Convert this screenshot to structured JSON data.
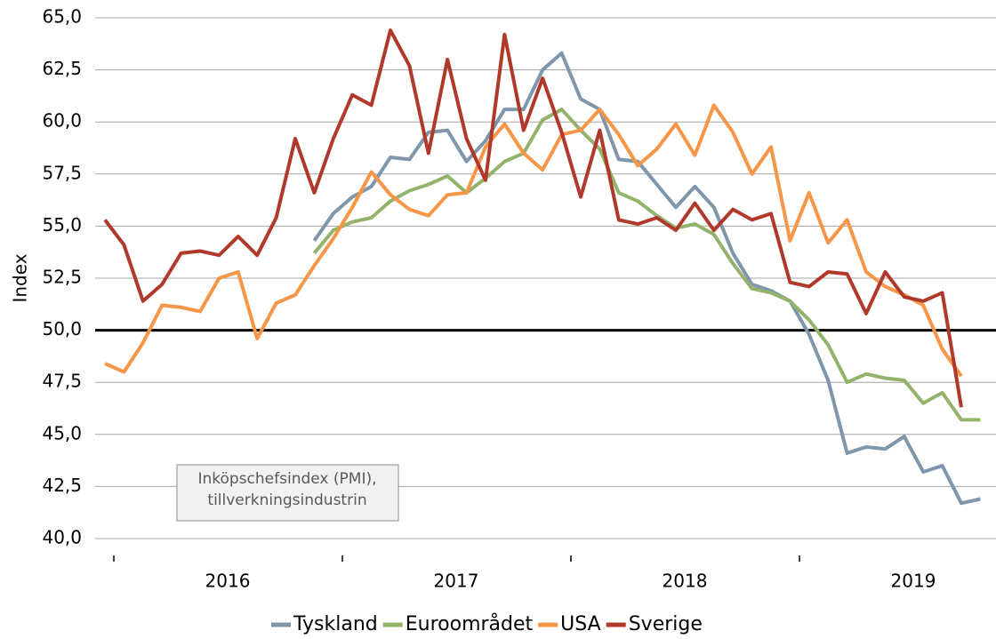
{
  "chart_data": {
    "type": "line",
    "y_label": "Index",
    "annotation": [
      "Inköpschefsindex (PMI),",
      "tillverkningsindustrin"
    ],
    "year_labels": [
      "2016",
      "2017",
      "2018",
      "2019"
    ],
    "categories": [
      null,
      null,
      null,
      null,
      null,
      null,
      null,
      null,
      null,
      null,
      null,
      null,
      null,
      null,
      null,
      null,
      null,
      null,
      null,
      null,
      null,
      null,
      null,
      null,
      null,
      null,
      null,
      null,
      null,
      null,
      null,
      null,
      null,
      null,
      null,
      null,
      null,
      null,
      null,
      null,
      null,
      null,
      null,
      null,
      null,
      null,
      null
    ],
    "ylim": [
      40,
      65
    ],
    "yticks": [
      {
        "value": 40,
        "label": "40,0"
      },
      {
        "value": 42.5,
        "label": "42,5"
      },
      {
        "value": 45,
        "label": "45,0"
      },
      {
        "value": 47.5,
        "label": "47,5"
      },
      {
        "value": 50,
        "label": "50,0"
      },
      {
        "value": 52.5,
        "label": "52,5"
      },
      {
        "value": 55,
        "label": "55,0"
      },
      {
        "value": 57.5,
        "label": "57,5"
      },
      {
        "value": 60,
        "label": "60,0"
      },
      {
        "value": 62.5,
        "label": "62,5"
      },
      {
        "value": 65,
        "label": "65,0"
      }
    ],
    "reference_line": 50,
    "grid": true,
    "series": [
      {
        "name": "Tyskland",
        "color": "#7f96ab",
        "values": [
          null,
          null,
          null,
          null,
          null,
          null,
          null,
          null,
          null,
          null,
          null,
          54.3,
          55.6,
          56.4,
          56.9,
          58.3,
          58.2,
          59.5,
          59.6,
          58.1,
          59.1,
          60.6,
          60.6,
          62.5,
          63.3,
          61.1,
          60.6,
          58.2,
          58.1,
          57.0,
          55.9,
          56.9,
          55.9,
          53.7,
          52.2,
          51.9,
          51.4,
          49.8,
          47.6,
          44.1,
          44.4,
          44.3,
          44.9,
          43.2,
          43.5,
          41.7,
          41.9
        ]
      },
      {
        "name": "Euroområdet",
        "color": "#93b36b",
        "values": [
          null,
          null,
          null,
          null,
          null,
          null,
          null,
          null,
          null,
          null,
          null,
          53.7,
          54.8,
          55.2,
          55.4,
          56.2,
          56.7,
          57.0,
          57.4,
          56.6,
          57.3,
          58.1,
          58.5,
          60.1,
          60.6,
          59.6,
          58.7,
          56.6,
          56.2,
          55.5,
          54.9,
          55.1,
          54.6,
          53.2,
          52.0,
          51.8,
          51.4,
          50.5,
          49.3,
          47.5,
          47.9,
          47.7,
          47.6,
          46.5,
          47.0,
          45.7,
          45.7
        ]
      },
      {
        "name": "USA",
        "color": "#f79646",
        "values": [
          48.4,
          48.0,
          49.4,
          51.2,
          51.1,
          50.9,
          52.5,
          52.8,
          49.6,
          51.3,
          51.7,
          53.1,
          54.4,
          55.9,
          57.6,
          56.5,
          55.8,
          55.5,
          56.5,
          56.6,
          58.8,
          59.9,
          58.5,
          57.7,
          59.4,
          59.6,
          60.6,
          59.4,
          57.9,
          58.7,
          59.9,
          58.4,
          60.8,
          59.5,
          57.5,
          58.8,
          54.3,
          56.6,
          54.2,
          55.3,
          52.8,
          52.1,
          51.7,
          51.2,
          49.1,
          47.8,
          null
        ]
      },
      {
        "name": "Sverige",
        "color": "#b0392b",
        "values": [
          55.3,
          54.1,
          51.4,
          52.2,
          53.7,
          53.8,
          53.6,
          54.5,
          53.6,
          55.4,
          59.2,
          56.6,
          59.2,
          61.3,
          60.8,
          64.4,
          62.7,
          58.5,
          63.0,
          59.2,
          57.2,
          64.2,
          59.6,
          62.1,
          59.5,
          56.4,
          59.6,
          55.3,
          55.1,
          55.4,
          54.8,
          56.1,
          54.8,
          55.8,
          55.3,
          55.6,
          52.3,
          52.1,
          52.8,
          52.7,
          50.8,
          52.8,
          51.6,
          51.4,
          51.8,
          46.3,
          null
        ]
      }
    ]
  }
}
